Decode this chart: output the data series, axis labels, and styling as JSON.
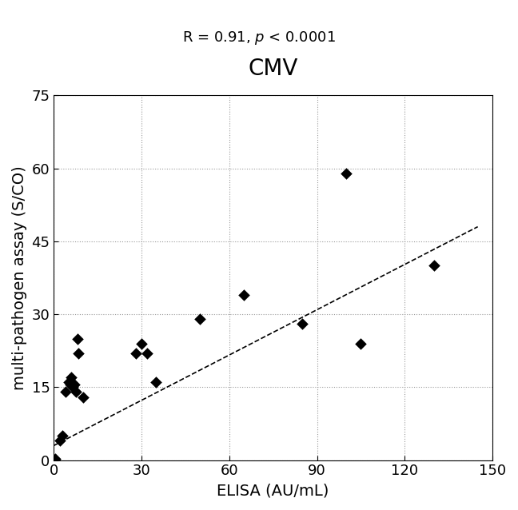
{
  "title": "CMV",
  "subtitle_normal1": "R = 0.91, ",
  "subtitle_italic": "p",
  "subtitle_normal2": " < 0.0001",
  "xlabel": "ELISA (AU/mL)",
  "ylabel": "multi-pathogen assay (S/CO)",
  "xlim": [
    0,
    150
  ],
  "ylim": [
    0,
    75
  ],
  "xticks": [
    0,
    30,
    60,
    90,
    120,
    150
  ],
  "yticks": [
    0,
    15,
    30,
    45,
    60,
    75
  ],
  "x_data": [
    0.3,
    0.5,
    2,
    3,
    4,
    5,
    5.5,
    6,
    6.5,
    7,
    7.5,
    8,
    8.5,
    10,
    28,
    30,
    32,
    35,
    50,
    65,
    85,
    100,
    105,
    130
  ],
  "y_data": [
    0,
    0.3,
    4,
    5,
    14,
    16,
    15.5,
    17,
    15,
    15.5,
    14,
    25,
    22,
    13,
    22,
    24,
    22,
    16,
    29,
    34,
    28,
    59,
    24,
    40
  ],
  "trendline_x": [
    0,
    145
  ],
  "trendline_y": [
    3,
    48
  ],
  "marker_color": "#000000",
  "marker_size": 55,
  "grid_color": "#999999",
  "title_fontsize": 20,
  "subtitle_fontsize": 13,
  "label_fontsize": 14,
  "tick_fontsize": 13
}
